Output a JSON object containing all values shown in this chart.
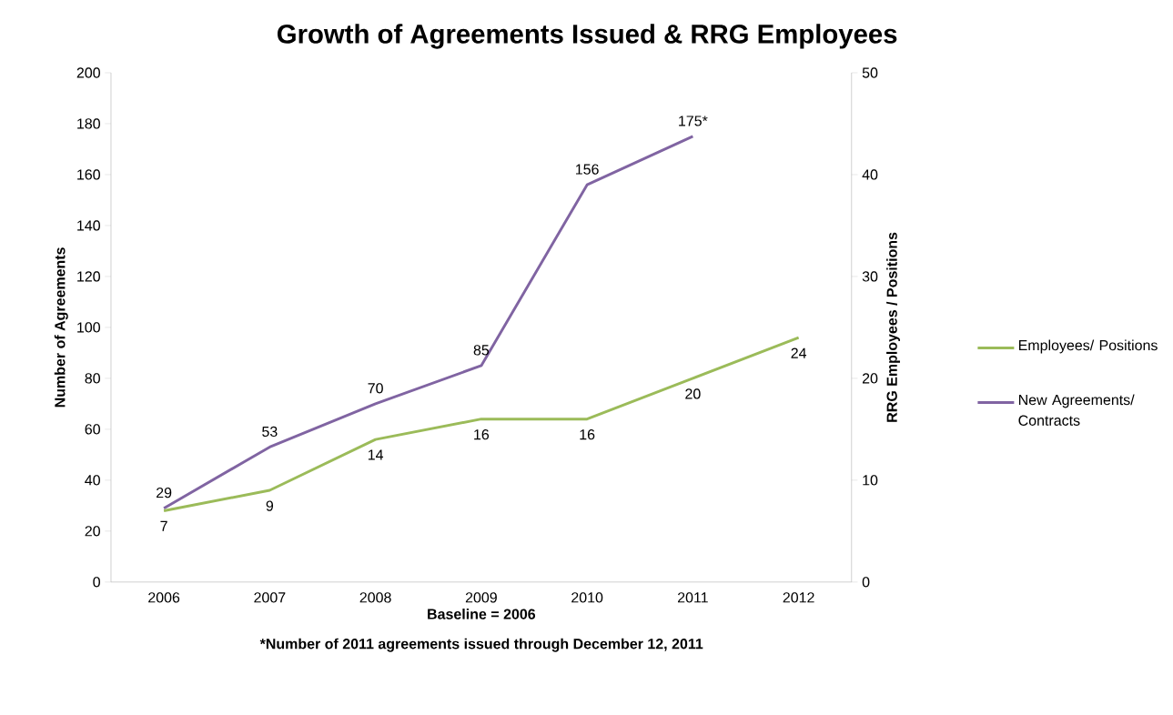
{
  "chart_data": {
    "type": "line",
    "title": "Growth of Agreements Issued & RRG Employees",
    "xlabel": "Baseline = 2006",
    "ylabel": "Number of Agreements",
    "y2label": "RRG Employees / Positions",
    "categories": [
      "2006",
      "2007",
      "2008",
      "2009",
      "2010",
      "2011",
      "2012"
    ],
    "series": [
      {
        "name": "Employees/ Positions",
        "color": "#9bbb59",
        "axis": "y2",
        "values": [
          7,
          9,
          14,
          16,
          16,
          20,
          24
        ],
        "value_labels": [
          "7",
          "9",
          "14",
          "16",
          "16",
          "20",
          "24"
        ]
      },
      {
        "name": "New Agreements/ Contracts",
        "color": "#8064a2",
        "values": [
          29,
          53,
          70,
          85,
          156,
          175,
          null
        ],
        "value_labels": [
          "29",
          "53",
          "70",
          "85",
          "156",
          "175*",
          null
        ]
      }
    ],
    "ylim": [
      0,
      200
    ],
    "yticks": [
      0,
      20,
      40,
      60,
      80,
      100,
      120,
      140,
      160,
      180,
      200
    ],
    "y2lim": [
      0,
      50
    ],
    "y2ticks": [
      0,
      10,
      20,
      30,
      40,
      50
    ],
    "legend": "right",
    "annotations": [
      "*Number of 2011 agreements issued through December 12, 2011"
    ]
  }
}
